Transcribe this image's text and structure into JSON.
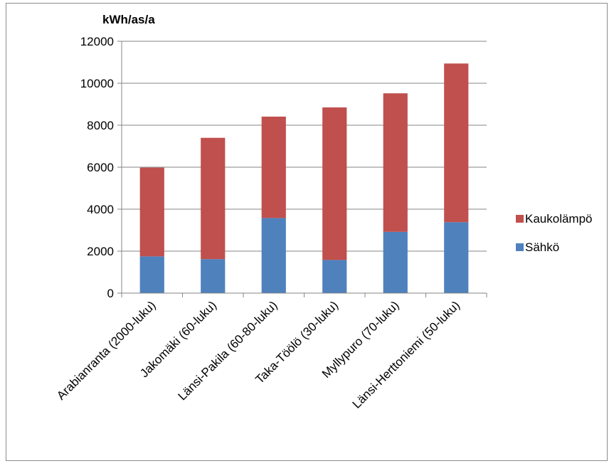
{
  "chart_data": {
    "type": "bar",
    "stacked": true,
    "ylabel": "kWh/as/a",
    "ylim": [
      0,
      12000
    ],
    "yticks": [
      0,
      2000,
      4000,
      6000,
      8000,
      10000,
      12000
    ],
    "grid": true,
    "legend_position": "right",
    "categories": [
      "Arabianranta (2000-luku)",
      "Jakomäki (60-luku)",
      "Länsi-Pakila (60-80-luku)",
      "Taka-Töölö (30-luku)",
      "Myllypuro (70-luku)",
      "Länsi-Herttoniemi (50-luku)"
    ],
    "series": [
      {
        "name": "Sähkö",
        "color": "#4f81bd",
        "values": [
          1750,
          1620,
          3580,
          1580,
          2920,
          3380
        ]
      },
      {
        "name": "Kaukolämpö",
        "color": "#c0504d",
        "values": [
          4230,
          5780,
          4830,
          7270,
          6600,
          7560
        ]
      }
    ],
    "legend_order": [
      "Kaukolämpö",
      "Sähkö"
    ]
  }
}
